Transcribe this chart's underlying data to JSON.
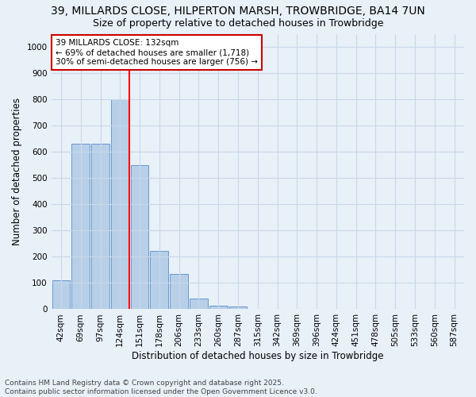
{
  "title": "39, MILLARDS CLOSE, HILPERTON MARSH, TROWBRIDGE, BA14 7UN",
  "subtitle": "Size of property relative to detached houses in Trowbridge",
  "xlabel": "Distribution of detached houses by size in Trowbridge",
  "ylabel": "Number of detached properties",
  "categories": [
    "42sqm",
    "69sqm",
    "97sqm",
    "124sqm",
    "151sqm",
    "178sqm",
    "206sqm",
    "233sqm",
    "260sqm",
    "287sqm",
    "315sqm",
    "342sqm",
    "369sqm",
    "396sqm",
    "424sqm",
    "451sqm",
    "478sqm",
    "505sqm",
    "533sqm",
    "560sqm",
    "587sqm"
  ],
  "values": [
    110,
    630,
    630,
    800,
    548,
    222,
    135,
    42,
    15,
    10,
    0,
    0,
    0,
    0,
    0,
    0,
    0,
    0,
    0,
    0,
    0
  ],
  "bar_color": "#b8cfe8",
  "bar_edge_color": "#6699cc",
  "red_line_index": 3,
  "annotation_text": "39 MILLARDS CLOSE: 132sqm\n← 69% of detached houses are smaller (1,718)\n30% of semi-detached houses are larger (756) →",
  "annotation_box_color": "#ffffff",
  "annotation_box_edge_color": "#cc0000",
  "ylim": [
    0,
    1050
  ],
  "yticks": [
    0,
    100,
    200,
    300,
    400,
    500,
    600,
    700,
    800,
    900,
    1000
  ],
  "grid_color": "#c8d8e8",
  "background_color": "#e8f0f8",
  "footer": "Contains HM Land Registry data © Crown copyright and database right 2025.\nContains public sector information licensed under the Open Government Licence v3.0.",
  "title_fontsize": 10,
  "subtitle_fontsize": 9,
  "xlabel_fontsize": 8.5,
  "ylabel_fontsize": 8.5,
  "tick_fontsize": 7.5,
  "annotation_fontsize": 7.5,
  "footer_fontsize": 6.5
}
